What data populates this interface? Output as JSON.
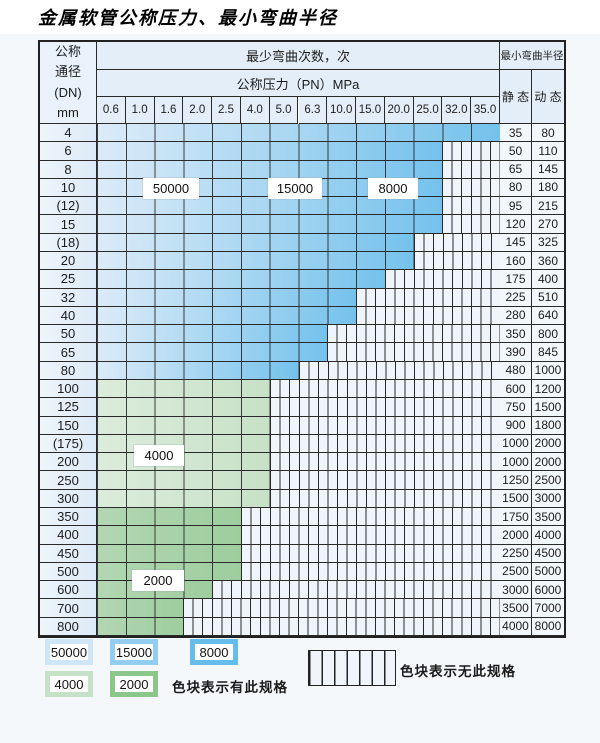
{
  "title": "金属软管公称压力、最小弯曲半径",
  "table": {
    "corner_lines": [
      "公称",
      "通径",
      "(DN)",
      "mm"
    ],
    "bend_header": "最少弯曲次数，次",
    "pn_header": "公称压力（PN）MPa",
    "pressures": [
      "0.6",
      "1.0",
      "1.6",
      "2.0",
      "2.5",
      "4.0",
      "5.0",
      "6.3",
      "10.0",
      "15.0",
      "20.0",
      "25.0",
      "32.0",
      "35.0"
    ],
    "radius_header": "最小弯曲半径",
    "static_header": "静 态",
    "dynamic_header": "动 态",
    "rows": [
      {
        "dn": "4",
        "colored_cols": 14,
        "zone": "blue",
        "max_pn": "35.0",
        "static": "35",
        "dynamic": "80"
      },
      {
        "dn": "6",
        "colored_cols": 12,
        "zone": "blue",
        "max_pn": "25.0",
        "static": "50",
        "dynamic": "110"
      },
      {
        "dn": "8",
        "colored_cols": 12,
        "zone": "blue",
        "max_pn": "25.0",
        "static": "65",
        "dynamic": "145"
      },
      {
        "dn": "10",
        "colored_cols": 12,
        "zone": "blue",
        "max_pn": "25.0",
        "static": "80",
        "dynamic": "180"
      },
      {
        "dn": "(12)",
        "colored_cols": 12,
        "zone": "blue",
        "max_pn": "25.0",
        "static": "95",
        "dynamic": "215"
      },
      {
        "dn": "15",
        "colored_cols": 12,
        "zone": "blue",
        "max_pn": "25.0",
        "static": "120",
        "dynamic": "270"
      },
      {
        "dn": "(18)",
        "colored_cols": 11,
        "zone": "blue",
        "max_pn": "20.0",
        "static": "145",
        "dynamic": "325"
      },
      {
        "dn": "20",
        "colored_cols": 11,
        "zone": "blue",
        "max_pn": "20.0",
        "static": "160",
        "dynamic": "360"
      },
      {
        "dn": "25",
        "colored_cols": 10,
        "zone": "blue",
        "max_pn": "15.0",
        "static": "175",
        "dynamic": "400"
      },
      {
        "dn": "32",
        "colored_cols": 9,
        "zone": "blue",
        "max_pn": "10.0",
        "static": "225",
        "dynamic": "510"
      },
      {
        "dn": "40",
        "colored_cols": 9,
        "zone": "blue",
        "max_pn": "10.0",
        "static": "280",
        "dynamic": "640"
      },
      {
        "dn": "50",
        "colored_cols": 8,
        "zone": "blue",
        "max_pn": "6.3",
        "static": "350",
        "dynamic": "800"
      },
      {
        "dn": "65",
        "colored_cols": 8,
        "zone": "blue",
        "max_pn": "6.3",
        "static": "390",
        "dynamic": "845"
      },
      {
        "dn": "80",
        "colored_cols": 7,
        "zone": "blue",
        "max_pn": "5.0",
        "static": "480",
        "dynamic": "1000"
      },
      {
        "dn": "100",
        "colored_cols": 6,
        "zone": "green_light",
        "max_pn": "4.0",
        "static": "600",
        "dynamic": "1200"
      },
      {
        "dn": "125",
        "colored_cols": 6,
        "zone": "green_light",
        "max_pn": "4.0",
        "static": "750",
        "dynamic": "1500"
      },
      {
        "dn": "150",
        "colored_cols": 6,
        "zone": "green_light",
        "max_pn": "4.0",
        "static": "900",
        "dynamic": "1800"
      },
      {
        "dn": "(175)",
        "colored_cols": 6,
        "zone": "green_light",
        "max_pn": "4.0",
        "static": "1000",
        "dynamic": "2000"
      },
      {
        "dn": "200",
        "colored_cols": 6,
        "zone": "green_light",
        "max_pn": "4.0",
        "static": "1000",
        "dynamic": "2000"
      },
      {
        "dn": "250",
        "colored_cols": 6,
        "zone": "green_light",
        "max_pn": "4.0",
        "static": "1250",
        "dynamic": "2500"
      },
      {
        "dn": "300",
        "colored_cols": 6,
        "zone": "green_light",
        "max_pn": "4.0",
        "static": "1500",
        "dynamic": "3000"
      },
      {
        "dn": "350",
        "colored_cols": 5,
        "zone": "green_dark",
        "max_pn": "2.5",
        "static": "1750",
        "dynamic": "3500"
      },
      {
        "dn": "400",
        "colored_cols": 5,
        "zone": "green_dark",
        "max_pn": "2.5",
        "static": "2000",
        "dynamic": "4000"
      },
      {
        "dn": "450",
        "colored_cols": 5,
        "zone": "green_dark",
        "max_pn": "2.5",
        "static": "2250",
        "dynamic": "4500"
      },
      {
        "dn": "500",
        "colored_cols": 5,
        "zone": "green_dark",
        "max_pn": "2.5",
        "static": "2500",
        "dynamic": "5000"
      },
      {
        "dn": "600",
        "colored_cols": 4,
        "zone": "green_dark",
        "max_pn": "2.0",
        "static": "3000",
        "dynamic": "6000"
      },
      {
        "dn": "700",
        "colored_cols": 3,
        "zone": "green_dark",
        "max_pn": "1.6",
        "static": "3500",
        "dynamic": "7000"
      },
      {
        "dn": "800",
        "colored_cols": 3,
        "zone": "green_dark",
        "max_pn": "1.6",
        "static": "4000",
        "dynamic": "8000"
      }
    ]
  },
  "zone_labels": [
    {
      "id": "50000",
      "text": "50000"
    },
    {
      "id": "15000",
      "text": "15000"
    },
    {
      "id": "8000",
      "text": "8000"
    },
    {
      "id": "4000",
      "text": "4000"
    },
    {
      "id": "2000",
      "text": "2000"
    }
  ],
  "legend": {
    "swatches": [
      {
        "label": "50000",
        "color": "#cfe6f8"
      },
      {
        "label": "15000",
        "color": "#93cdf0"
      },
      {
        "label": "8000",
        "color": "#66bde9"
      },
      {
        "label": "4000",
        "color": "#c6e2c6"
      },
      {
        "label": "2000",
        "color": "#8bc78b"
      }
    ],
    "has_spec_text": "色块表示有此规格",
    "no_spec_text": "色块表示无此规格"
  },
  "colors": {
    "blue_from": "#dcebf8",
    "blue_to": "#74c2ec",
    "green_light_from": "#dcecdc",
    "green_light_to": "#c7e1c7",
    "green_dark_from": "#b3d7b3",
    "green_dark_to": "#9ecd9e",
    "stripe_bg": "#f0f5fb",
    "grid_line": "#2a2a2a"
  }
}
